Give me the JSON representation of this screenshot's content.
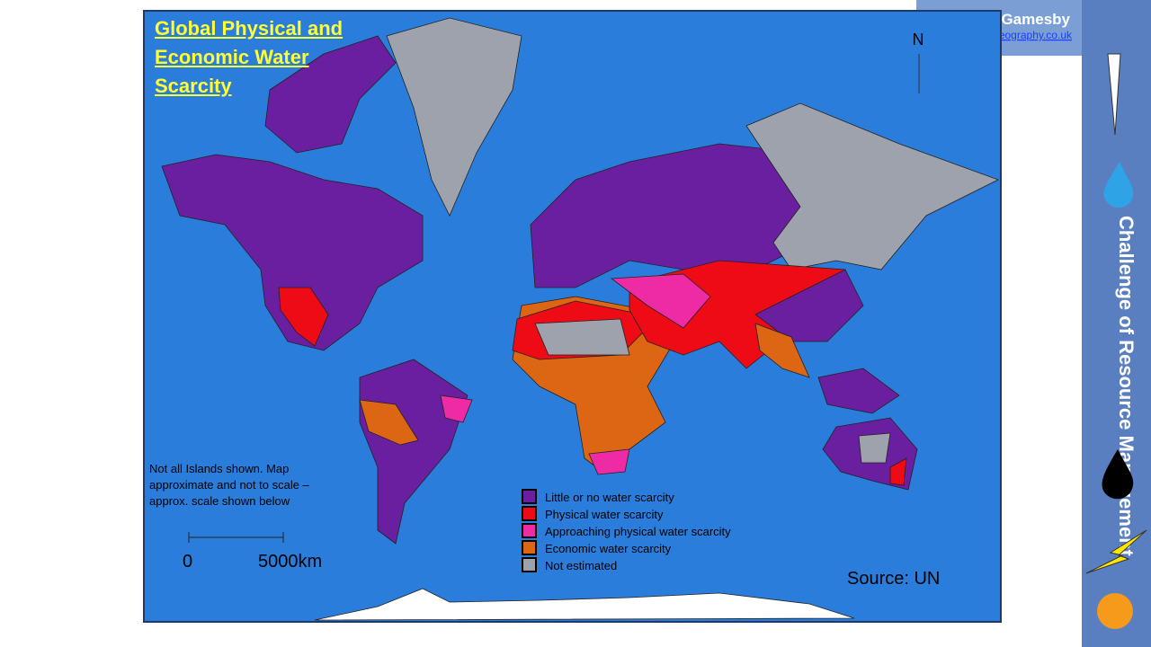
{
  "header": {
    "name": "Gamesby",
    "url": "eography.co.uk"
  },
  "map": {
    "title": "Global Physical and Economic Water Scarcity",
    "north": "N",
    "note": "Not all Islands shown.  Map approximate and not to scale – approx. scale shown below",
    "scale": {
      "start": "0",
      "end": "5000km"
    },
    "source": "Source: UN",
    "legend": [
      {
        "label": "Little or no water scarcity",
        "color": "#6a1fa0"
      },
      {
        "label": "Physical water scarcity",
        "color": "#ee0b16"
      },
      {
        "label": "Approaching physical water scarcity",
        "color": "#ee2ba4"
      },
      {
        "label": "Economic water scarcity",
        "color": "#dd6614"
      },
      {
        "label": "Not estimated",
        "color": "#9da2ad"
      }
    ]
  },
  "sidebar": {
    "title": "Challenge of Resource Management"
  }
}
